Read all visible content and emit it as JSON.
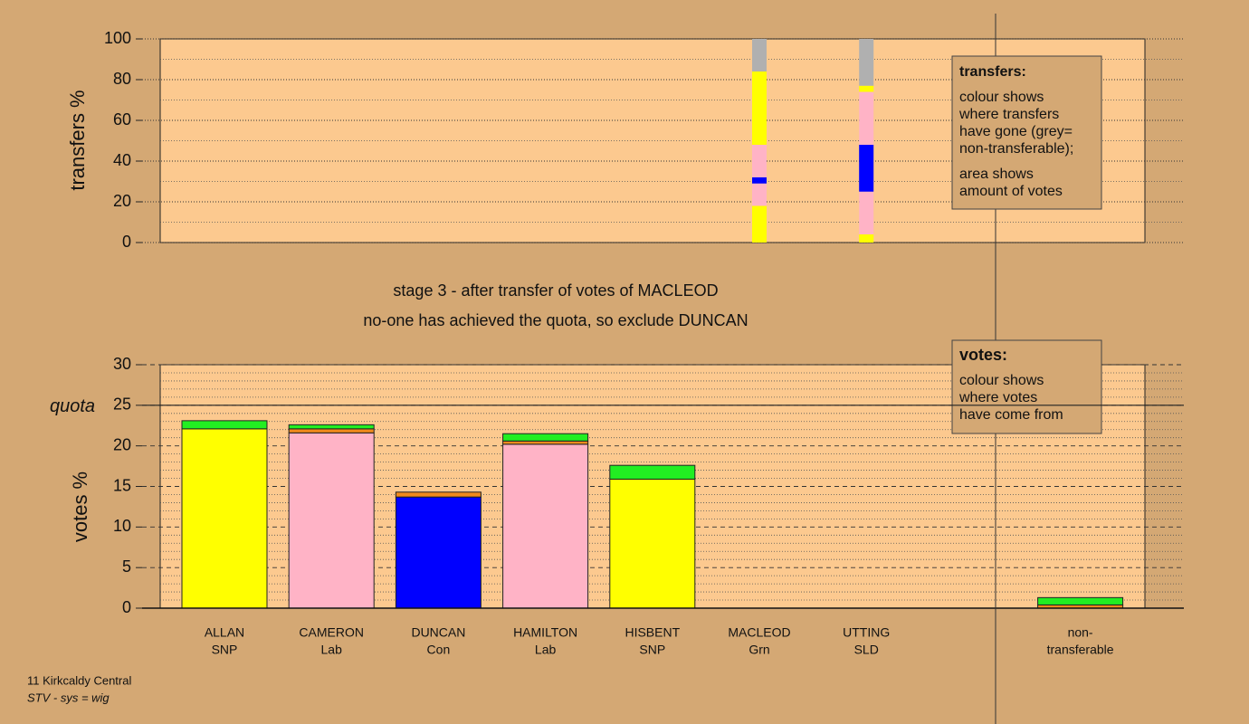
{
  "chart_data": [
    {
      "type": "bar",
      "stacked": true,
      "ylabel": "transfers %",
      "ylim": [
        0,
        100
      ],
      "yticks": [
        0,
        20,
        40,
        60,
        80,
        100
      ],
      "minor_step": 10,
      "grid": true,
      "series": [
        {
          "color": "#ffff00",
          "values": [
            null,
            null,
            null,
            null,
            null,
            18,
            4,
            null,
            null
          ]
        },
        {
          "color": "#ffb3c6",
          "values": [
            null,
            null,
            null,
            null,
            null,
            11,
            21,
            null,
            null
          ]
        },
        {
          "color": "#0000ff",
          "values": [
            null,
            null,
            null,
            null,
            null,
            3,
            23,
            null,
            null
          ]
        },
        {
          "color": "#ffb3c6",
          "values": [
            null,
            null,
            null,
            null,
            null,
            16,
            26,
            null,
            null
          ]
        },
        {
          "color": "#ffff00",
          "values": [
            null,
            null,
            null,
            null,
            null,
            36,
            3,
            null,
            null
          ]
        },
        {
          "color": "#b0b0b0",
          "values": [
            null,
            null,
            null,
            null,
            null,
            16,
            23,
            null,
            null
          ]
        }
      ],
      "legend_title": "transfers:",
      "legend_lines": [
        "colour shows",
        "where transfers",
        "have gone (grey=",
        "non-transferable);",
        "area shows",
        "amount of votes"
      ]
    },
    {
      "type": "bar",
      "stacked": true,
      "ylabel": "votes %",
      "annotations": [
        "stage 3 - after transfer of votes of MACLEOD",
        "no-one has achieved the quota, so exclude DUNCAN"
      ],
      "categories": [
        "ALLAN",
        "CAMERON",
        "DUNCAN",
        "HAMILTON",
        "HISBENT",
        "MACLEOD",
        "UTTING",
        null,
        "non-"
      ],
      "category_sublabels": [
        "SNP",
        "Lab",
        "Con",
        "Lab",
        "SNP",
        "Grn",
        "SLD",
        null,
        "transferable"
      ],
      "ylim": [
        0,
        30
      ],
      "yticks": [
        0,
        5,
        10,
        15,
        20,
        25,
        30
      ],
      "minor_step": 1,
      "grid": true,
      "quota": 25,
      "quota_label": "quota",
      "series": [
        {
          "color": "#ffff00",
          "values": [
            22.1,
            0,
            0,
            0,
            15.9,
            0,
            0,
            null,
            0
          ]
        },
        {
          "color": "#ffb3c6",
          "values": [
            0,
            21.6,
            0,
            20.2,
            0,
            0,
            0,
            null,
            0
          ]
        },
        {
          "color": "#0000ff",
          "values": [
            0,
            0,
            13.7,
            0,
            0,
            0,
            0,
            null,
            0
          ]
        },
        {
          "color": "#f08a1c",
          "values": [
            0,
            0.5,
            0.6,
            0.4,
            0,
            0,
            0,
            null,
            0.4
          ]
        },
        {
          "color": "#22ee22",
          "values": [
            1.0,
            0.5,
            0,
            0.9,
            1.7,
            0,
            0,
            null,
            0.9
          ]
        }
      ],
      "legend_title": "votes:",
      "legend_lines": [
        "colour shows",
        "where votes",
        "have come from"
      ]
    }
  ],
  "footer": {
    "line1": "11 Kirkcaldy Central",
    "line2": "STV - sys = wig"
  }
}
